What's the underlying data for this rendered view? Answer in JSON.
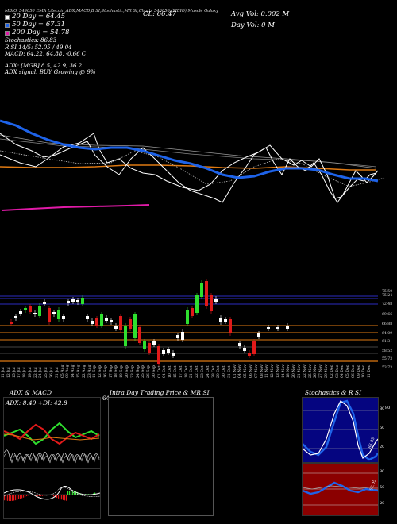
{
  "header": {
    "line": "MBIO_549050  EMA Litecoin,ADX,MACD,B    SI,Stochastic,MR    SI,Charts 546050    (MBIO) Muscle Galaxy",
    "ema20": "20  Day  = 64.45",
    "ema50": "50  Day  = 67.31",
    "ema200": "200  Day  = 54.78",
    "stochastics": "Stochastics: 86.83",
    "rsi_line": "R          SI 14/5: 52.05 / 49.04",
    "macd_line": "MACD: 64.22,  64.88,  -0.66   C",
    "close": "CL: 66.47",
    "avg_vol": "Avg Vol: 0.002   M",
    "day_vol": "Day Vol: 0   M",
    "adx_line": "ADX:                                [MGR] 8.5,  42.9,  36.2",
    "adx_signal": "ADX  signal:                                 BUY Growing @ 9%",
    "colors": {
      "ema20": "#ffffff",
      "ema50": "#1e63e9",
      "ema200": "#e11aa8",
      "ema100": "#e07a12"
    }
  },
  "price_axis": {
    "labels": [
      "75.50",
      "75.24",
      "72.48",
      "69.66",
      "66.88",
      "64.09",
      "61.3",
      "58.52",
      "55.73",
      "53.73"
    ]
  },
  "date_axis": {
    "labels": [
      "11 Jul",
      "12 Jul",
      "15 Jul",
      "17 Jul",
      "18 Jul",
      "19 Jul",
      "22 Jul",
      "24 Jul",
      "25 Jul",
      "26 Jul",
      "31 Jul",
      "05 Aug",
      "09 Aug",
      "14 Aug",
      "15 Aug",
      "22 Aug",
      "23 Aug",
      "11 Sep",
      "12 Sep",
      "16 Sep",
      "17 Sep",
      "18 Sep",
      "19 Sep",
      "20 Sep",
      "23 Sep",
      "24 Sep",
      "25 Sep",
      "26 Sep",
      "30 Sep",
      "01 Oct",
      "04 Oct",
      "10 Oct",
      "15 Oct",
      "17 Oct",
      "18 Oct",
      "21 Oct",
      "22 Oct",
      "23 Oct",
      "24 Oct",
      "28 Oct",
      "29 Oct",
      "30 Oct",
      "31 Oct",
      "01 Nov",
      "04 Nov",
      "05 Nov",
      "06 Nov",
      "07 Nov",
      "08 Nov",
      "11 Nov",
      "12 Nov",
      "13 Nov",
      "14 Nov",
      "18 Nov",
      "20 Nov",
      "21 Nov",
      "22 Nov",
      "25 Nov",
      "26 Nov",
      "27 Nov",
      "29 Nov",
      "02 Dec",
      "03 Dec",
      "04 Dec",
      "05 Dec",
      "06 Dec",
      "09 Dec",
      "10 Dec",
      "11 Dec"
    ]
  },
  "panels": {
    "adx_macd": {
      "title": "ADX  & MACD",
      "values": "ADX: 8.49  +DI: 42.8",
      "price_hint": "64"
    },
    "intraday": {
      "title": "Intra Day Trading Price  & MR              SI"
    },
    "stoch_rsi": {
      "title": "Stochastics & R              SI",
      "stoch_ticks": [
        "80",
        "50",
        "20"
      ],
      "stoch_value": "86.83",
      "rsi_ticks": [
        "80",
        "50",
        "20"
      ],
      "rsi_value": "52.05"
    }
  }
}
